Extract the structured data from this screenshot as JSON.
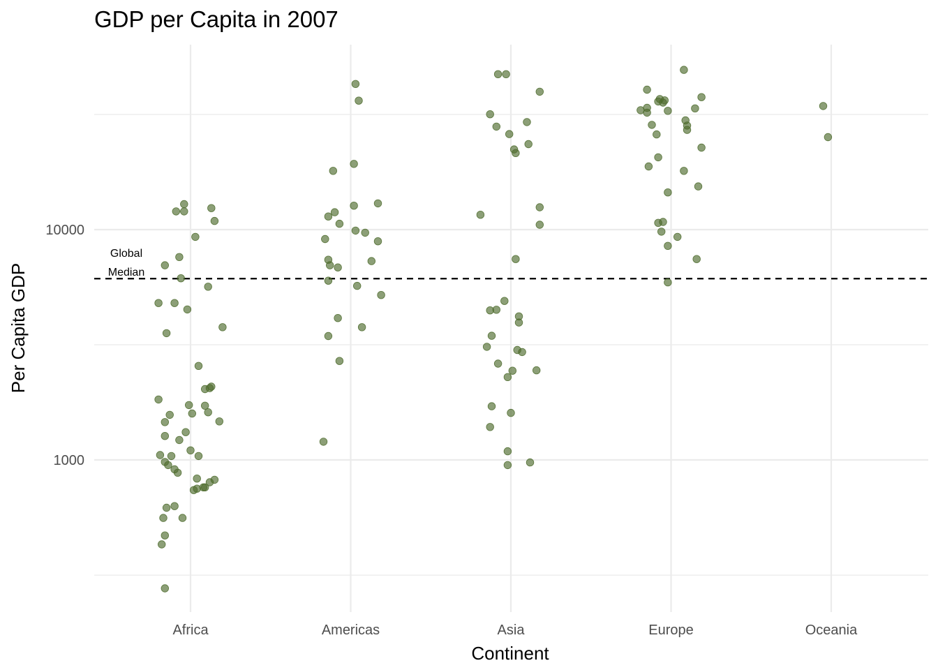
{
  "chart_data": {
    "type": "scatter",
    "title": "GDP per Capita in 2007",
    "xlabel": "Continent",
    "ylabel": "Per Capita GDP",
    "categories": [
      "Africa",
      "Americas",
      "Asia",
      "Europe",
      "Oceania"
    ],
    "y_scale": "log10",
    "ylim": [
      240,
      56000
    ],
    "y_ticks": [
      1000,
      10000
    ],
    "y_tick_labels": [
      "1000",
      "10000"
    ],
    "y_minor_gridlines": [
      316,
      3162,
      31623
    ],
    "grid": true,
    "point_color": "#4e6b2e",
    "point_opacity": 0.65,
    "reference_line": {
      "value": 6124,
      "style": "dashed",
      "label": [
        "Global",
        "Median"
      ]
    },
    "series": [
      {
        "category": "Africa",
        "points": [
          {
            "x": -0.16,
            "y": 277
          },
          {
            "x": -0.18,
            "y": 430
          },
          {
            "x": -0.16,
            "y": 470
          },
          {
            "x": -0.15,
            "y": 620
          },
          {
            "x": -0.1,
            "y": 630
          },
          {
            "x": -0.05,
            "y": 560
          },
          {
            "x": -0.17,
            "y": 560
          },
          {
            "x": 0.02,
            "y": 740
          },
          {
            "x": 0.04,
            "y": 750
          },
          {
            "x": 0.08,
            "y": 760
          },
          {
            "x": 0.04,
            "y": 830
          },
          {
            "x": 0.09,
            "y": 760
          },
          {
            "x": 0.12,
            "y": 800
          },
          {
            "x": 0.15,
            "y": 820
          },
          {
            "x": -0.08,
            "y": 880
          },
          {
            "x": -0.1,
            "y": 910
          },
          {
            "x": -0.14,
            "y": 950
          },
          {
            "x": -0.16,
            "y": 980
          },
          {
            "x": -0.19,
            "y": 1050
          },
          {
            "x": -0.12,
            "y": 1040
          },
          {
            "x": 0.0,
            "y": 1100
          },
          {
            "x": 0.05,
            "y": 1040
          },
          {
            "x": -0.16,
            "y": 1270
          },
          {
            "x": -0.07,
            "y": 1220
          },
          {
            "x": -0.03,
            "y": 1320
          },
          {
            "x": -0.16,
            "y": 1460
          },
          {
            "x": -0.13,
            "y": 1570
          },
          {
            "x": -0.01,
            "y": 1730
          },
          {
            "x": 0.01,
            "y": 1590
          },
          {
            "x": 0.09,
            "y": 1720
          },
          {
            "x": 0.11,
            "y": 1610
          },
          {
            "x": 0.18,
            "y": 1470
          },
          {
            "x": -0.2,
            "y": 1830
          },
          {
            "x": 0.09,
            "y": 2030
          },
          {
            "x": 0.12,
            "y": 2050
          },
          {
            "x": 0.13,
            "y": 2080
          },
          {
            "x": 0.05,
            "y": 2560
          },
          {
            "x": -0.15,
            "y": 3550
          },
          {
            "x": 0.2,
            "y": 3770
          },
          {
            "x": -0.2,
            "y": 4800
          },
          {
            "x": -0.1,
            "y": 4800
          },
          {
            "x": -0.02,
            "y": 4500
          },
          {
            "x": -0.06,
            "y": 6150
          },
          {
            "x": 0.11,
            "y": 5650
          },
          {
            "x": -0.16,
            "y": 7000
          },
          {
            "x": -0.07,
            "y": 7600
          },
          {
            "x": 0.03,
            "y": 9300
          },
          {
            "x": 0.15,
            "y": 10900
          },
          {
            "x": 0.13,
            "y": 12400
          },
          {
            "x": -0.09,
            "y": 12000
          },
          {
            "x": -0.04,
            "y": 12000
          },
          {
            "x": -0.04,
            "y": 12900
          }
        ]
      },
      {
        "category": "Americas",
        "points": [
          {
            "x": -0.17,
            "y": 1200
          },
          {
            "x": -0.14,
            "y": 3450
          },
          {
            "x": -0.07,
            "y": 2690
          },
          {
            "x": -0.08,
            "y": 4130
          },
          {
            "x": 0.07,
            "y": 3770
          },
          {
            "x": -0.14,
            "y": 6000
          },
          {
            "x": 0.04,
            "y": 5700
          },
          {
            "x": 0.19,
            "y": 5200
          },
          {
            "x": -0.16,
            "y": 9100
          },
          {
            "x": -0.14,
            "y": 7400
          },
          {
            "x": -0.13,
            "y": 7000
          },
          {
            "x": -0.08,
            "y": 6850
          },
          {
            "x": 0.13,
            "y": 7300
          },
          {
            "x": 0.17,
            "y": 8900
          },
          {
            "x": 0.09,
            "y": 9700
          },
          {
            "x": 0.03,
            "y": 9900
          },
          {
            "x": -0.07,
            "y": 10600
          },
          {
            "x": -0.14,
            "y": 11400
          },
          {
            "x": -0.1,
            "y": 11900
          },
          {
            "x": 0.02,
            "y": 12700
          },
          {
            "x": 0.17,
            "y": 13000
          },
          {
            "x": -0.11,
            "y": 18000
          },
          {
            "x": 0.02,
            "y": 19300
          },
          {
            "x": 0.05,
            "y": 36300
          },
          {
            "x": 0.03,
            "y": 42900
          }
        ]
      },
      {
        "category": "Asia",
        "points": [
          {
            "x": -0.02,
            "y": 950
          },
          {
            "x": 0.12,
            "y": 975
          },
          {
            "x": -0.02,
            "y": 1090
          },
          {
            "x": -0.13,
            "y": 1390
          },
          {
            "x": 0.0,
            "y": 1600
          },
          {
            "x": -0.12,
            "y": 1710
          },
          {
            "x": -0.02,
            "y": 2290
          },
          {
            "x": 0.01,
            "y": 2440
          },
          {
            "x": 0.16,
            "y": 2450
          },
          {
            "x": -0.08,
            "y": 2620
          },
          {
            "x": 0.04,
            "y": 3000
          },
          {
            "x": 0.07,
            "y": 2940
          },
          {
            "x": -0.15,
            "y": 3100
          },
          {
            "x": -0.12,
            "y": 3460
          },
          {
            "x": -0.13,
            "y": 4460
          },
          {
            "x": -0.09,
            "y": 4490
          },
          {
            "x": -0.04,
            "y": 4900
          },
          {
            "x": 0.05,
            "y": 3950
          },
          {
            "x": 0.05,
            "y": 4200
          },
          {
            "x": 0.03,
            "y": 7450
          },
          {
            "x": -0.19,
            "y": 11600
          },
          {
            "x": 0.18,
            "y": 10500
          },
          {
            "x": 0.18,
            "y": 12500
          },
          {
            "x": 0.02,
            "y": 22300
          },
          {
            "x": 0.03,
            "y": 21500
          },
          {
            "x": 0.11,
            "y": 23500
          },
          {
            "x": -0.01,
            "y": 26000
          },
          {
            "x": 0.1,
            "y": 29300
          },
          {
            "x": -0.09,
            "y": 28000
          },
          {
            "x": -0.13,
            "y": 31700
          },
          {
            "x": -0.08,
            "y": 47300
          },
          {
            "x": -0.03,
            "y": 47300
          },
          {
            "x": 0.18,
            "y": 39700
          }
        ]
      },
      {
        "category": "Europe",
        "points": [
          {
            "x": -0.02,
            "y": 5900
          },
          {
            "x": 0.16,
            "y": 7450
          },
          {
            "x": -0.02,
            "y": 8500
          },
          {
            "x": 0.04,
            "y": 9300
          },
          {
            "x": -0.06,
            "y": 9800
          },
          {
            "x": -0.08,
            "y": 10700
          },
          {
            "x": -0.05,
            "y": 10800
          },
          {
            "x": -0.02,
            "y": 14500
          },
          {
            "x": 0.17,
            "y": 15400
          },
          {
            "x": -0.14,
            "y": 18800
          },
          {
            "x": 0.08,
            "y": 18000
          },
          {
            "x": -0.08,
            "y": 20600
          },
          {
            "x": 0.19,
            "y": 22700
          },
          {
            "x": -0.09,
            "y": 25900
          },
          {
            "x": -0.12,
            "y": 28500
          },
          {
            "x": 0.1,
            "y": 27100
          },
          {
            "x": 0.1,
            "y": 28300
          },
          {
            "x": 0.09,
            "y": 29800
          },
          {
            "x": -0.19,
            "y": 33000
          },
          {
            "x": -0.15,
            "y": 33800
          },
          {
            "x": -0.15,
            "y": 32200
          },
          {
            "x": -0.08,
            "y": 36000
          },
          {
            "x": -0.07,
            "y": 36900
          },
          {
            "x": -0.05,
            "y": 35600
          },
          {
            "x": -0.04,
            "y": 36400
          },
          {
            "x": -0.02,
            "y": 32800
          },
          {
            "x": 0.15,
            "y": 33600
          },
          {
            "x": 0.19,
            "y": 37600
          },
          {
            "x": -0.15,
            "y": 40500
          },
          {
            "x": 0.08,
            "y": 49400
          }
        ]
      },
      {
        "category": "Oceania",
        "points": [
          {
            "x": -0.05,
            "y": 34400
          },
          {
            "x": -0.02,
            "y": 25200
          }
        ]
      }
    ]
  }
}
